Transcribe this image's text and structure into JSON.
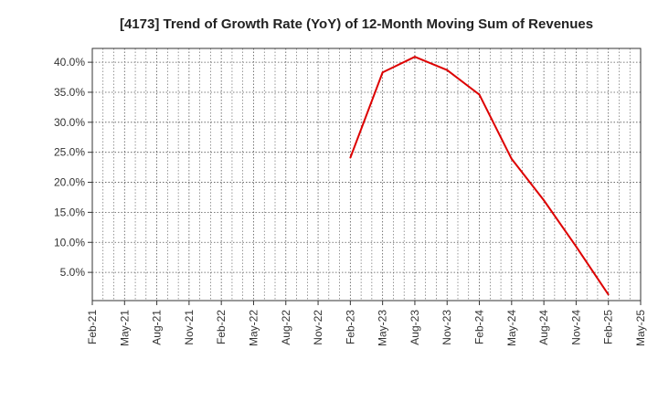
{
  "chart_data": {
    "type": "line",
    "title": "[4173]  Trend of Growth Rate (YoY) of 12-Month Moving Sum of Revenues",
    "xlabel": "",
    "ylabel": "",
    "x_ticks": [
      "Feb-21",
      "May-21",
      "Aug-21",
      "Nov-21",
      "Feb-22",
      "May-22",
      "Aug-22",
      "Nov-22",
      "Feb-23",
      "May-23",
      "Aug-23",
      "Nov-23",
      "Feb-24",
      "May-24",
      "Aug-24",
      "Nov-24",
      "Feb-25",
      "May-25"
    ],
    "y_ticks": [
      5.0,
      10.0,
      15.0,
      20.0,
      25.0,
      30.0,
      35.0,
      40.0
    ],
    "y_tick_labels": [
      "5.0%",
      "10.0%",
      "15.0%",
      "20.0%",
      "25.0%",
      "30.0%",
      "35.0%",
      "40.0%"
    ],
    "ylim": [
      0.3,
      42.3
    ],
    "grid": true,
    "colors": {
      "line": "#dd0000",
      "grid": "#555555",
      "axis": "#333333"
    },
    "series": [
      {
        "name": "",
        "x": [
          "Feb-23",
          "May-23",
          "Aug-23",
          "Nov-23",
          "Feb-24",
          "May-24",
          "Aug-24",
          "Nov-24",
          "Feb-25"
        ],
        "values": [
          24.1,
          38.3,
          40.9,
          38.7,
          34.6,
          23.9,
          17.0,
          9.3,
          1.3
        ]
      }
    ]
  }
}
